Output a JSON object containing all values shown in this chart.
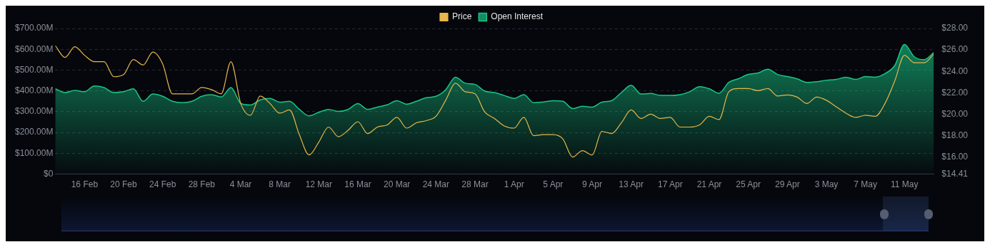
{
  "chart_data": {
    "type": "area",
    "x": [
      "--02-13",
      "--02-14",
      "--02-15",
      "--02-16",
      "--02-17",
      "--02-18",
      "--02-19",
      "--02-20",
      "--02-21",
      "--02-22",
      "--02-23",
      "--02-24",
      "--02-25",
      "--02-26",
      "--02-27",
      "--02-28",
      "--03-01",
      "--03-02",
      "--03-03",
      "--03-04",
      "--03-05",
      "--03-06",
      "--03-07",
      "--03-08",
      "--03-09",
      "--03-10",
      "--03-11",
      "--03-12",
      "--03-13",
      "--03-14",
      "--03-15",
      "--03-16",
      "--03-17",
      "--03-18",
      "--03-19",
      "--03-20",
      "--03-21",
      "--03-22",
      "--03-23",
      "--03-24",
      "--03-25",
      "--03-26",
      "--03-27",
      "--03-28",
      "--03-29",
      "--03-30",
      "--03-31",
      "--04-01",
      "--04-02",
      "--04-03",
      "--04-04",
      "--04-05",
      "--04-06",
      "--04-07",
      "--04-08",
      "--04-09",
      "--04-10",
      "--04-11",
      "--04-12",
      "--04-13",
      "--04-14",
      "--04-15",
      "--04-16",
      "--04-17",
      "--04-18",
      "--04-19",
      "--04-20",
      "--04-21",
      "--04-22",
      "--04-23",
      "--04-24",
      "--04-25",
      "--04-26",
      "--04-27",
      "--04-28",
      "--04-29",
      "--04-30",
      "--05-01",
      "--05-02",
      "--05-03",
      "--05-04",
      "--05-05",
      "--05-06",
      "--05-07",
      "--05-08",
      "--05-09",
      "--05-10",
      "--05-11",
      "--05-12",
      "--05-13",
      "--05-14"
    ],
    "series": [
      {
        "name": "Price",
        "type": "line",
        "axis": "y2",
        "color": "#e8b64a",
        "values": [
          26.4,
          25.3,
          26.3,
          25.5,
          24.9,
          24.9,
          23.5,
          23.7,
          25.1,
          24.6,
          25.8,
          24.7,
          21.9,
          21.9,
          21.9,
          22.5,
          22.3,
          21.9,
          24.9,
          21.0,
          19.9,
          21.7,
          21.0,
          20.1,
          20.4,
          18.1,
          16.2,
          17.4,
          18.8,
          17.9,
          18.5,
          19.3,
          18.2,
          18.8,
          19.0,
          19.7,
          18.7,
          19.2,
          19.4,
          19.8,
          21.3,
          22.9,
          22.1,
          21.9,
          20.2,
          19.6,
          18.9,
          18.7,
          19.7,
          18.0,
          18.1,
          18.1,
          17.7,
          16.0,
          16.6,
          16.2,
          18.4,
          18.2,
          19.2,
          20.4,
          19.6,
          20.0,
          19.6,
          19.7,
          18.8,
          18.8,
          19.0,
          19.8,
          19.5,
          22.1,
          22.4,
          22.4,
          22.2,
          22.4,
          21.7,
          21.8,
          21.6,
          21.0,
          21.6,
          21.3,
          20.7,
          20.1,
          19.7,
          19.9,
          19.8,
          21.0,
          23.1,
          25.5,
          24.8,
          24.8,
          25.6
        ]
      },
      {
        "name": "Open Interest",
        "color": "#18c685",
        "values": [
          410,
          392,
          402,
          396,
          424,
          416,
          392,
          396,
          410,
          350,
          385,
          374,
          350,
          343,
          350,
          374,
          382,
          371,
          416,
          340,
          332,
          357,
          364,
          346,
          350,
          311,
          280,
          297,
          311,
          301,
          311,
          339,
          311,
          322,
          333,
          353,
          336,
          350,
          367,
          374,
          406,
          466,
          437,
          431,
          399,
          392,
          378,
          364,
          382,
          343,
          347,
          353,
          350,
          315,
          326,
          322,
          346,
          353,
          392,
          427,
          385,
          388,
          378,
          378,
          382,
          396,
          420,
          410,
          389,
          441,
          459,
          479,
          486,
          504,
          479,
          469,
          458,
          441,
          444,
          451,
          455,
          466,
          455,
          469,
          466,
          483,
          522,
          623,
          564,
          550,
          584
        ]
      }
    ],
    "xlim": [
      "--02-13",
      "--05-14"
    ],
    "xticks": [
      {
        "value": "--02-16",
        "label": "16 Feb"
      },
      {
        "value": "--02-20",
        "label": "20 Feb"
      },
      {
        "value": "--02-24",
        "label": "24 Feb"
      },
      {
        "value": "--02-28",
        "label": "28 Feb"
      },
      {
        "value": "--03-04",
        "label": "4 Mar"
      },
      {
        "value": "--03-08",
        "label": "8 Mar"
      },
      {
        "value": "--03-12",
        "label": "12 Mar"
      },
      {
        "value": "--03-16",
        "label": "16 Mar"
      },
      {
        "value": "--03-20",
        "label": "20 Mar"
      },
      {
        "value": "--03-24",
        "label": "24 Mar"
      },
      {
        "value": "--03-28",
        "label": "28 Mar"
      },
      {
        "value": "--04-01",
        "label": "1 Apr"
      },
      {
        "value": "--04-05",
        "label": "5 Apr"
      },
      {
        "value": "--04-09",
        "label": "9 Apr"
      },
      {
        "value": "--04-13",
        "label": "13 Apr"
      },
      {
        "value": "--04-17",
        "label": "17 Apr"
      },
      {
        "value": "--04-21",
        "label": "21 Apr"
      },
      {
        "value": "--04-25",
        "label": "25 Apr"
      },
      {
        "value": "--04-29",
        "label": "29 Apr"
      },
      {
        "value": "--05-03",
        "label": "3 May"
      },
      {
        "value": "--05-07",
        "label": "7 May"
      },
      {
        "value": "--05-11",
        "label": "11 May"
      }
    ],
    "ylim": [
      0,
      700
    ],
    "yticks": [
      {
        "value": 0,
        "label": "$0"
      },
      {
        "value": 100,
        "label": "$100.00M"
      },
      {
        "value": 200,
        "label": "$200.00M"
      },
      {
        "value": 300,
        "label": "$300.00M"
      },
      {
        "value": 400,
        "label": "$400.00M"
      },
      {
        "value": 500,
        "label": "$500.00M"
      },
      {
        "value": 600,
        "label": "$600.00M"
      },
      {
        "value": 700,
        "label": "$700.00M"
      }
    ],
    "y2lim": [
      14.41,
      28
    ],
    "y2ticks": [
      {
        "value": 14.41,
        "label": "$14.41"
      },
      {
        "value": 16,
        "label": "$16.00"
      },
      {
        "value": 18,
        "label": "$18.00"
      },
      {
        "value": 20,
        "label": "$20.00"
      },
      {
        "value": 22,
        "label": "$22.00"
      },
      {
        "value": 24,
        "label": "$24.00"
      },
      {
        "value": 26,
        "label": "$26.00"
      },
      {
        "value": 28,
        "label": "$28.00"
      }
    ],
    "grid": "y",
    "legend": "top"
  }
}
